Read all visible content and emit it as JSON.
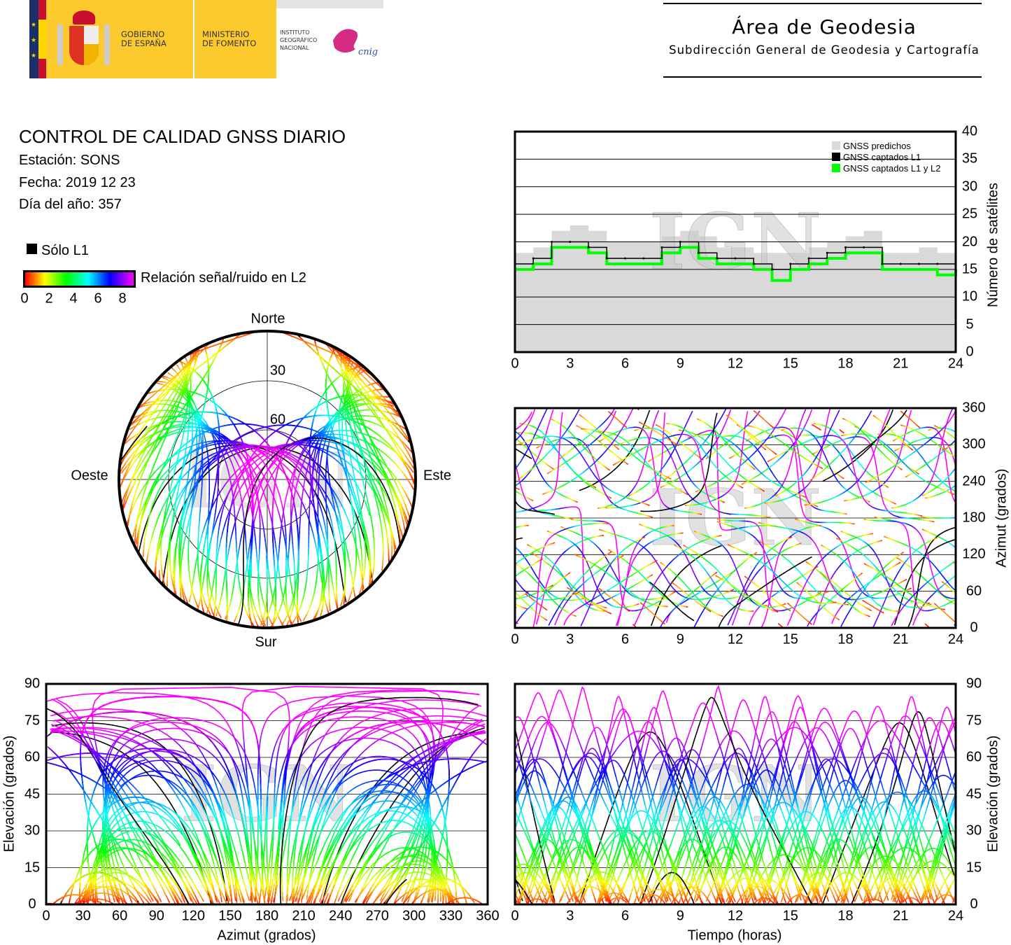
{
  "header": {
    "logo_text": [
      "GOBIERNO DE ESPAÑA",
      "MINISTERIO DE FOMENTO",
      "INSTITUTO GEOGRÁFICO NACIONAL",
      "cnig"
    ],
    "title": "Área de Geodesia",
    "subtitle": "Subdirección General de Geodesia y Cartografía"
  },
  "report": {
    "title": "CONTROL DE CALIDAD GNSS DIARIO",
    "station": "Estación: SONS",
    "date": "Fecha: 2019 12 23",
    "doy": "Día del año: 357"
  },
  "legend": {
    "only_l1": "Sólo L1",
    "snr_label": "Relación señal/ruido en L2",
    "snr_ticks": [
      "0",
      "2",
      "4",
      "6",
      "8"
    ],
    "colors": {
      "only_l1": "#000000",
      "snr_scale": [
        "#ff0000",
        "#ffff00",
        "#00ff00",
        "#00ffff",
        "#0000ff",
        "#ff00ff"
      ]
    }
  },
  "watermark": "IGN",
  "chart_data": [
    {
      "type": "line",
      "title": "",
      "xlabel": "",
      "ylabel": "Número de satélites",
      "xlim": [
        0,
        24
      ],
      "ylim": [
        0,
        40
      ],
      "xticks": [
        "0",
        "3",
        "6",
        "9",
        "12",
        "15",
        "18",
        "21",
        "24"
      ],
      "yticks": [
        "0",
        "5",
        "10",
        "15",
        "20",
        "25",
        "30",
        "35",
        "40"
      ],
      "grid": true,
      "legend_position": "top-right",
      "x": [
        0,
        1,
        2,
        3,
        4,
        5,
        6,
        7,
        8,
        9,
        10,
        11,
        12,
        13,
        14,
        15,
        16,
        17,
        18,
        19,
        20,
        21,
        22,
        23,
        24
      ],
      "series": [
        {
          "name": "GNSS predichos",
          "color": "#d9d9d9",
          "values": [
            18,
            19,
            22,
            23,
            22,
            20,
            20,
            20,
            21,
            22,
            21,
            19,
            19,
            18,
            18,
            18,
            19,
            20,
            21,
            22,
            18,
            18,
            19,
            18,
            18
          ]
        },
        {
          "name": "GNSS captados L1",
          "color": "#000000",
          "values": [
            16,
            17,
            20,
            20,
            19,
            17,
            17,
            17,
            19,
            20,
            18,
            17,
            17,
            16,
            15,
            16,
            17,
            18,
            19,
            19,
            16,
            16,
            16,
            16,
            16
          ]
        },
        {
          "name": "GNSS captados L1 y L2",
          "color": "#00ff00",
          "values": [
            15,
            16,
            19,
            19,
            18,
            16,
            16,
            16,
            18,
            19,
            17,
            16,
            16,
            15,
            13,
            15,
            16,
            17,
            18,
            18,
            15,
            15,
            15,
            14,
            15
          ]
        }
      ]
    },
    {
      "type": "scatter",
      "title": "",
      "xlabel": "",
      "ylabel": "Azimut (grados)",
      "xlim": [
        0,
        24
      ],
      "ylim": [
        0,
        360
      ],
      "xticks": [
        "0",
        "3",
        "6",
        "9",
        "12",
        "15",
        "18",
        "21",
        "24"
      ],
      "yticks": [
        "0",
        "60",
        "120",
        "180",
        "240",
        "300",
        "360"
      ],
      "grid": true
    },
    {
      "type": "scatter",
      "title": "",
      "xlabel": "Azimut (grados)",
      "ylabel": "Elevación (grados)",
      "xlim": [
        0,
        360
      ],
      "ylim": [
        0,
        90
      ],
      "xticks": [
        "0",
        "30",
        "60",
        "90",
        "120",
        "150",
        "180",
        "210",
        "240",
        "270",
        "300",
        "330",
        "360"
      ],
      "yticks": [
        "0",
        "15",
        "30",
        "45",
        "60",
        "75",
        "90"
      ],
      "grid": true
    },
    {
      "type": "scatter",
      "title": "",
      "xlabel": "Tiempo (horas)",
      "ylabel": "Elevación (grados)",
      "xlim": [
        0,
        24
      ],
      "ylim": [
        0,
        90
      ],
      "xticks": [
        "0",
        "3",
        "6",
        "9",
        "12",
        "15",
        "18",
        "21",
        "24"
      ],
      "yticks": [
        "0",
        "15",
        "30",
        "45",
        "60",
        "75",
        "90"
      ],
      "grid": true
    },
    {
      "type": "scatter",
      "title": "",
      "polar": true,
      "directions": {
        "north": "Norte",
        "south": "Sur",
        "west": "Oeste",
        "east": "Este"
      },
      "ring_labels": [
        "30",
        "60"
      ]
    }
  ]
}
